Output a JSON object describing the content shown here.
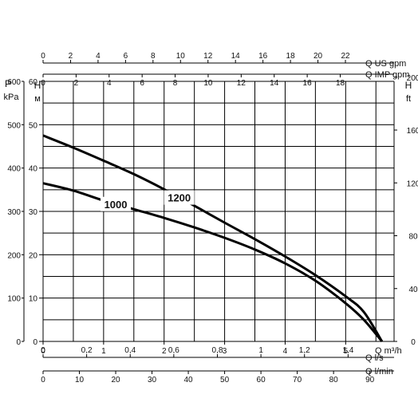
{
  "chart_data": {
    "type": "line",
    "title": "",
    "grid": true,
    "legend": "none",
    "x_axis": {
      "label": "Q m³/h",
      "ticks": [
        0,
        1,
        2,
        3,
        4,
        5
      ],
      "range": [
        0,
        5.8
      ]
    },
    "y_axis_H_m": {
      "title": "H",
      "unit": "м",
      "ticks": [
        0,
        10,
        20,
        30,
        40,
        50,
        60
      ],
      "range": [
        0,
        60
      ]
    },
    "y_axis_P_kPa": {
      "title": "P",
      "unit": "kPa",
      "ticks": [
        0,
        100,
        200,
        300,
        400,
        500,
        600
      ],
      "range": [
        0,
        600
      ]
    },
    "y_axis_H_ft": {
      "title": "H",
      "unit": "ft",
      "ticks": [
        0,
        40,
        80,
        120,
        160,
        200
      ],
      "range": [
        0,
        196.85
      ]
    },
    "top_axes": [
      {
        "label": "Q US gpm",
        "ticks": [
          "0",
          "2",
          "4",
          "6",
          "8",
          "10",
          "12",
          "14",
          "16",
          "18",
          "20",
          "22"
        ],
        "values": [
          0,
          2,
          4,
          6,
          8,
          10,
          12,
          14,
          16,
          18,
          20,
          22
        ],
        "factor_to_m3h": 0.2271
      },
      {
        "label": "Q IMP gpm",
        "ticks": [
          "0",
          "2",
          "4",
          "6",
          "8",
          "10",
          "12",
          "14",
          "16",
          "18"
        ],
        "values": [
          0,
          2,
          4,
          6,
          8,
          10,
          12,
          14,
          16,
          18
        ],
        "factor_to_m3h": 0.2728
      }
    ],
    "bottom_axes": [
      {
        "label": "Q l/s",
        "ticks": [
          "0",
          "0,2",
          "0,4",
          "0,6",
          "0,8",
          "1",
          "1,2",
          "1,4"
        ],
        "values": [
          0,
          0.2,
          0.4,
          0.6,
          0.8,
          1,
          1.2,
          1.4
        ],
        "factor_to_m3h": 3.6
      },
      {
        "label": "Q l/min",
        "ticks": [
          "0",
          "10",
          "20",
          "30",
          "40",
          "50",
          "60",
          "70",
          "80",
          "90"
        ],
        "values": [
          0,
          10,
          20,
          30,
          40,
          50,
          60,
          70,
          80,
          90
        ],
        "factor_to_m3h": 0.06
      }
    ],
    "series": [
      {
        "name": "1200",
        "x": [
          0,
          0.5,
          1,
          1.5,
          2,
          2.5,
          3,
          3.5,
          4,
          4.5,
          5,
          5.3,
          5.6
        ],
        "y": [
          47.5,
          44.7,
          41.7,
          38.6,
          35.1,
          31.3,
          27.4,
          23.6,
          19.6,
          15.3,
          10.4,
          6.8,
          0
        ]
      },
      {
        "name": "1000",
        "x": [
          0,
          0.5,
          1,
          1.5,
          2,
          2.5,
          3,
          3.5,
          4,
          4.5,
          5,
          5.3,
          5.6
        ],
        "y": [
          36.5,
          34.8,
          32.5,
          30.5,
          28.5,
          26.3,
          23.9,
          21.2,
          18.0,
          14.0,
          8.8,
          5.0,
          0
        ]
      }
    ]
  }
}
